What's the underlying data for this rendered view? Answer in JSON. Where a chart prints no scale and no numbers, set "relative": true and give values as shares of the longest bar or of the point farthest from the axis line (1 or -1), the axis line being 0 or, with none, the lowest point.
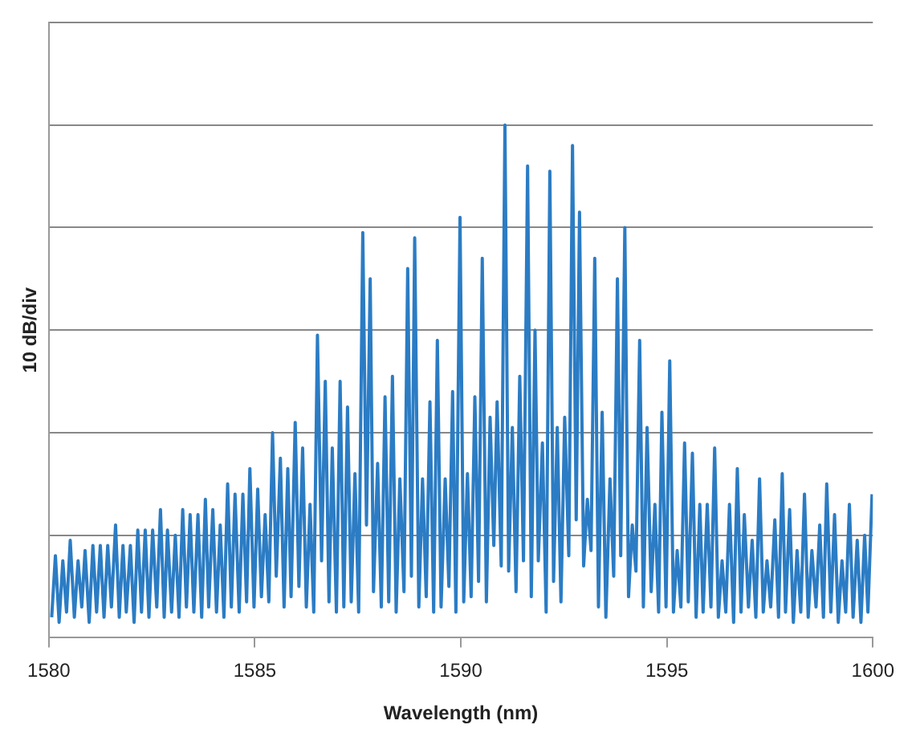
{
  "chart_data": {
    "type": "line",
    "xlabel": "Wavelength (nm)",
    "ylabel": "10 dB/div",
    "relative": true,
    "grid": "y",
    "legend": false,
    "marker": "none",
    "line_style": "solid",
    "xlim": [
      1580,
      1600
    ],
    "xticks": [
      1580,
      1585,
      1590,
      1595,
      1600
    ],
    "x": [
      1580.07,
      1580.16,
      1580.25,
      1580.34,
      1580.43,
      1580.52,
      1580.62,
      1580.71,
      1580.8,
      1580.88,
      1580.98,
      1581.07,
      1581.16,
      1581.25,
      1581.34,
      1581.43,
      1581.52,
      1581.62,
      1581.71,
      1581.8,
      1581.88,
      1581.98,
      1582.07,
      1582.16,
      1582.25,
      1582.34,
      1582.43,
      1582.52,
      1582.62,
      1582.71,
      1582.8,
      1582.88,
      1582.98,
      1583.07,
      1583.16,
      1583.25,
      1583.34,
      1583.43,
      1583.52,
      1583.62,
      1583.71,
      1583.8,
      1583.88,
      1583.98,
      1584.07,
      1584.16,
      1584.25,
      1584.34,
      1584.43,
      1584.52,
      1584.62,
      1584.71,
      1584.8,
      1584.88,
      1584.98,
      1585.07,
      1585.16,
      1585.25,
      1585.34,
      1585.43,
      1585.52,
      1585.62,
      1585.71,
      1585.8,
      1585.88,
      1585.98,
      1586.07,
      1586.16,
      1586.25,
      1586.34,
      1586.43,
      1586.52,
      1586.62,
      1586.71,
      1586.8,
      1586.88,
      1586.98,
      1587.07,
      1587.16,
      1587.25,
      1587.34,
      1587.43,
      1587.52,
      1587.62,
      1587.71,
      1587.8,
      1587.88,
      1587.98,
      1588.07,
      1588.16,
      1588.25,
      1588.34,
      1588.43,
      1588.52,
      1588.62,
      1588.71,
      1588.8,
      1588.88,
      1588.98,
      1589.07,
      1589.16,
      1589.25,
      1589.34,
      1589.43,
      1589.52,
      1589.62,
      1589.71,
      1589.8,
      1589.88,
      1589.98,
      1590.07,
      1590.16,
      1590.25,
      1590.34,
      1590.43,
      1590.52,
      1590.62,
      1590.71,
      1590.8,
      1590.88,
      1590.98,
      1591.07,
      1591.16,
      1591.25,
      1591.34,
      1591.43,
      1591.52,
      1591.62,
      1591.71,
      1591.8,
      1591.88,
      1591.98,
      1592.07,
      1592.16,
      1592.25,
      1592.34,
      1592.43,
      1592.52,
      1592.62,
      1592.71,
      1592.8,
      1592.88,
      1592.98,
      1593.07,
      1593.16,
      1593.25,
      1593.34,
      1593.43,
      1593.52,
      1593.62,
      1593.71,
      1593.8,
      1593.88,
      1593.98,
      1594.07,
      1594.16,
      1594.25,
      1594.34,
      1594.43,
      1594.52,
      1594.62,
      1594.71,
      1594.8,
      1594.88,
      1594.98,
      1595.07,
      1595.16,
      1595.25,
      1595.34,
      1595.43,
      1595.52,
      1595.62,
      1595.71,
      1595.8,
      1595.88,
      1595.98,
      1596.07,
      1596.16,
      1596.25,
      1596.34,
      1596.43,
      1596.52,
      1596.62,
      1596.71,
      1596.8,
      1596.88,
      1596.98,
      1597.07,
      1597.16,
      1597.25,
      1597.34,
      1597.43,
      1597.52,
      1597.62,
      1597.71,
      1597.8,
      1597.88,
      1597.98,
      1598.07,
      1598.16,
      1598.25,
      1598.34,
      1598.43,
      1598.52,
      1598.62,
      1598.71,
      1598.8,
      1598.88,
      1598.98,
      1599.07,
      1599.16,
      1599.25,
      1599.34,
      1599.43,
      1599.52,
      1599.62,
      1599.71,
      1599.8,
      1599.88,
      1599.98
    ],
    "series": [
      {
        "color": "#2b7cc4",
        "values": [
          0.04,
          0.16,
          0.03,
          0.15,
          0.05,
          0.19,
          0.04,
          0.15,
          0.06,
          0.17,
          0.03,
          0.18,
          0.05,
          0.18,
          0.04,
          0.18,
          0.06,
          0.22,
          0.04,
          0.18,
          0.05,
          0.18,
          0.03,
          0.21,
          0.05,
          0.21,
          0.04,
          0.21,
          0.06,
          0.25,
          0.04,
          0.21,
          0.05,
          0.2,
          0.04,
          0.25,
          0.06,
          0.24,
          0.05,
          0.24,
          0.04,
          0.27,
          0.06,
          0.25,
          0.05,
          0.22,
          0.04,
          0.3,
          0.06,
          0.28,
          0.05,
          0.28,
          0.07,
          0.33,
          0.06,
          0.29,
          0.08,
          0.24,
          0.07,
          0.4,
          0.12,
          0.35,
          0.06,
          0.33,
          0.08,
          0.42,
          0.1,
          0.37,
          0.06,
          0.26,
          0.05,
          0.59,
          0.15,
          0.5,
          0.07,
          0.37,
          0.05,
          0.5,
          0.06,
          0.45,
          0.07,
          0.32,
          0.05,
          0.79,
          0.22,
          0.7,
          0.09,
          0.34,
          0.06,
          0.47,
          0.07,
          0.51,
          0.05,
          0.31,
          0.09,
          0.72,
          0.12,
          0.78,
          0.06,
          0.31,
          0.08,
          0.46,
          0.05,
          0.58,
          0.06,
          0.31,
          0.1,
          0.48,
          0.05,
          0.82,
          0.07,
          0.32,
          0.08,
          0.47,
          0.11,
          0.74,
          0.07,
          0.43,
          0.18,
          0.46,
          0.14,
          1,
          0.13,
          0.41,
          0.09,
          0.51,
          0.15,
          0.92,
          0.08,
          0.6,
          0.15,
          0.38,
          0.05,
          0.91,
          0.11,
          0.41,
          0.07,
          0.43,
          0.16,
          0.96,
          0.23,
          0.83,
          0.14,
          0.27,
          0.17,
          0.74,
          0.06,
          0.44,
          0.04,
          0.31,
          0.12,
          0.7,
          0.16,
          0.8,
          0.08,
          0.22,
          0.13,
          0.58,
          0.06,
          0.41,
          0.09,
          0.26,
          0.05,
          0.44,
          0.06,
          0.54,
          0.05,
          0.17,
          0.06,
          0.38,
          0.07,
          0.36,
          0.04,
          0.26,
          0.05,
          0.26,
          0.06,
          0.37,
          0.04,
          0.15,
          0.05,
          0.26,
          0.03,
          0.33,
          0.05,
          0.24,
          0.06,
          0.19,
          0.04,
          0.31,
          0.05,
          0.15,
          0.06,
          0.23,
          0.04,
          0.32,
          0.05,
          0.25,
          0.03,
          0.17,
          0.05,
          0.28,
          0.04,
          0.17,
          0.06,
          0.22,
          0.04,
          0.3,
          0.05,
          0.24,
          0.03,
          0.15,
          0.05,
          0.26,
          0.04,
          0.19,
          0.03,
          0.2,
          0.05,
          0.28
        ]
      }
    ]
  }
}
